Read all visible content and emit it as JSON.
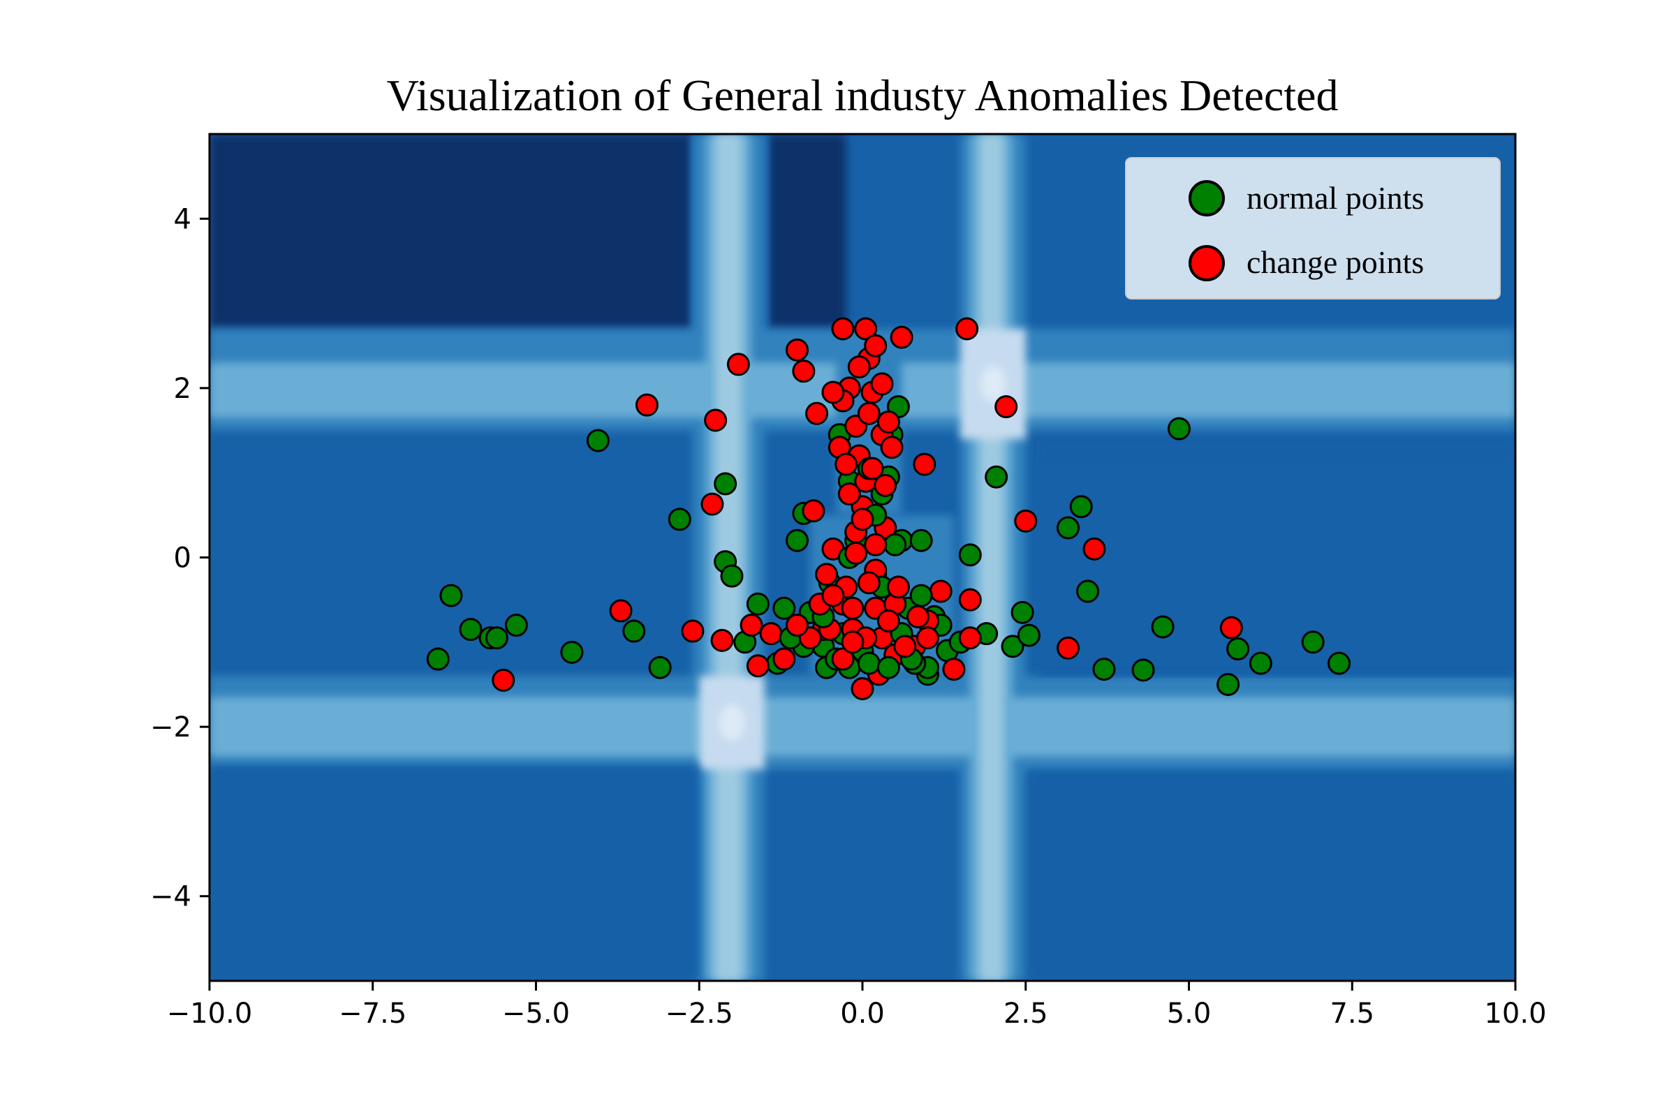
{
  "chart_data": {
    "type": "scatter",
    "title": "Visualization of General industy Anomalies Detected",
    "xlabel": "",
    "ylabel": "",
    "xlim": [
      -10,
      10
    ],
    "ylim": [
      -5,
      5
    ],
    "x_ticks": [
      -10,
      -7.5,
      -5,
      -2.5,
      0,
      2.5,
      5,
      7.5,
      10
    ],
    "x_tick_labels": [
      "−10.0",
      "−7.5",
      "−5.0",
      "−2.5",
      "0.0",
      "2.5",
      "5.0",
      "7.5",
      "10.0"
    ],
    "y_ticks": [
      -4,
      -2,
      0,
      2,
      4
    ],
    "y_tick_labels": [
      "−4",
      "−2",
      "0",
      "2",
      "4"
    ],
    "grid": false,
    "legend_position": "top-right",
    "background": "anomaly score contour field (blue shades), light vertical bands near x=-2 and x=2, light horizontal bands near y=2 and y=-2",
    "contour_colors": [
      "#08306b",
      "#08519c",
      "#1761a8",
      "#3182bd",
      "#6baed6",
      "#9ecae1",
      "#c6dbef",
      "#deebf7"
    ],
    "series": [
      {
        "name": "normal points",
        "color": "#008000",
        "points": [
          [
            -6.5,
            -1.2
          ],
          [
            -6.3,
            -0.45
          ],
          [
            -6.0,
            -0.85
          ],
          [
            -5.7,
            -0.95
          ],
          [
            -5.6,
            -0.95
          ],
          [
            -5.3,
            -0.8
          ],
          [
            -4.45,
            -1.12
          ],
          [
            -4.05,
            1.38
          ],
          [
            -3.5,
            -0.87
          ],
          [
            -3.1,
            -1.3
          ],
          [
            -2.8,
            0.45
          ],
          [
            -2.1,
            0.87
          ],
          [
            -2.1,
            -0.05
          ],
          [
            -2.0,
            -0.22
          ],
          [
            -1.6,
            -0.55
          ],
          [
            -1.8,
            -1.0
          ],
          [
            -1.2,
            -0.6
          ],
          [
            -1.0,
            0.2
          ],
          [
            -0.9,
            0.52
          ],
          [
            -0.8,
            -0.65
          ],
          [
            -0.6,
            -1.05
          ],
          [
            -0.5,
            -0.3
          ],
          [
            -0.35,
            1.45
          ],
          [
            -0.3,
            -0.9
          ],
          [
            -0.2,
            0.9
          ],
          [
            -0.1,
            0.2
          ],
          [
            0.1,
            0.5
          ],
          [
            0.2,
            -0.2
          ],
          [
            0.3,
            0.75
          ],
          [
            0.4,
            0.95
          ],
          [
            0.45,
            1.45
          ],
          [
            0.55,
            1.78
          ],
          [
            0.6,
            0.2
          ],
          [
            0.7,
            -0.6
          ],
          [
            0.9,
            0.2
          ],
          [
            1.0,
            -1.38
          ],
          [
            1.0,
            -1.3
          ],
          [
            1.1,
            -0.7
          ],
          [
            1.2,
            -0.8
          ],
          [
            1.3,
            -1.1
          ],
          [
            1.5,
            -1.0
          ],
          [
            1.65,
            0.03
          ],
          [
            1.9,
            -0.9
          ],
          [
            2.05,
            0.95
          ],
          [
            2.3,
            -1.05
          ],
          [
            2.45,
            -0.65
          ],
          [
            2.55,
            -0.92
          ],
          [
            3.15,
            0.35
          ],
          [
            3.35,
            0.6
          ],
          [
            3.45,
            -0.4
          ],
          [
            3.7,
            -1.32
          ],
          [
            4.3,
            -1.33
          ],
          [
            4.6,
            -0.82
          ],
          [
            4.85,
            1.52
          ],
          [
            5.6,
            -1.5
          ],
          [
            5.75,
            -1.08
          ],
          [
            6.1,
            -1.25
          ],
          [
            6.9,
            -1.0
          ],
          [
            7.3,
            -1.25
          ],
          [
            0.8,
            -1.25
          ],
          [
            -1.3,
            -1.25
          ],
          [
            0.0,
            -1.1
          ]
        ]
      },
      {
        "name": "change points",
        "color": "#ff0000",
        "points": [
          [
            -5.5,
            -1.45
          ],
          [
            -3.7,
            -0.63
          ],
          [
            -3.3,
            1.8
          ],
          [
            -2.6,
            -0.87
          ],
          [
            -2.25,
            1.62
          ],
          [
            -2.3,
            0.63
          ],
          [
            -1.9,
            2.28
          ],
          [
            -2.15,
            -0.98
          ],
          [
            -1.7,
            -0.8
          ],
          [
            -1.6,
            -1.28
          ],
          [
            -1.4,
            -0.9
          ],
          [
            -1.0,
            2.45
          ],
          [
            -0.9,
            2.2
          ],
          [
            -0.75,
            0.55
          ],
          [
            -0.7,
            1.7
          ],
          [
            -0.6,
            -0.85
          ],
          [
            -0.55,
            -0.2
          ],
          [
            -0.5,
            -0.85
          ],
          [
            -0.35,
            1.3
          ],
          [
            -0.3,
            -0.55
          ],
          [
            -0.3,
            2.7
          ],
          [
            -0.2,
            2.0
          ],
          [
            -0.15,
            -0.85
          ],
          [
            -0.1,
            0.3
          ],
          [
            0.0,
            -1.55
          ],
          [
            0.0,
            0.6
          ],
          [
            0.05,
            2.7
          ],
          [
            0.1,
            2.35
          ],
          [
            0.15,
            1.95
          ],
          [
            0.2,
            -0.15
          ],
          [
            0.2,
            -0.6
          ],
          [
            0.25,
            -1.38
          ],
          [
            0.3,
            1.45
          ],
          [
            0.35,
            0.35
          ],
          [
            0.4,
            1.6
          ],
          [
            0.5,
            -0.55
          ],
          [
            0.5,
            -1.15
          ],
          [
            0.6,
            2.6
          ],
          [
            0.8,
            -1.05
          ],
          [
            0.95,
            1.1
          ],
          [
            1.0,
            -0.75
          ],
          [
            1.2,
            -0.4
          ],
          [
            1.4,
            -1.32
          ],
          [
            1.65,
            -0.5
          ],
          [
            1.65,
            -0.95
          ],
          [
            1.6,
            2.7
          ],
          [
            2.2,
            1.78
          ],
          [
            2.5,
            0.43
          ],
          [
            3.15,
            -1.07
          ],
          [
            3.55,
            0.1
          ],
          [
            5.65,
            -0.83
          ],
          [
            -0.05,
            1.2
          ],
          [
            0.05,
            0.9
          ],
          [
            -0.25,
            -0.35
          ],
          [
            0.3,
            -0.95
          ],
          [
            -0.45,
            0.1
          ]
        ]
      },
      {
        "name": "",
        "color": "#008000",
        "points": [
          [
            -0.2,
            -1.3
          ],
          [
            0.1,
            -1.25
          ],
          [
            0.4,
            -1.3
          ],
          [
            0.6,
            -0.9
          ],
          [
            0.75,
            -1.2
          ],
          [
            -0.55,
            -1.3
          ],
          [
            -0.9,
            -1.05
          ],
          [
            -1.1,
            -0.95
          ],
          [
            0.9,
            -0.45
          ],
          [
            0.3,
            -0.35
          ],
          [
            -0.6,
            -0.7
          ],
          [
            -0.4,
            -1.2
          ],
          [
            0.2,
            0.5
          ],
          [
            0.5,
            0.15
          ],
          [
            -0.2,
            0.0
          ],
          [
            0.1,
            1.05
          ]
        ]
      },
      {
        "name": "",
        "color": "#ff0000",
        "points": [
          [
            -0.8,
            -0.95
          ],
          [
            -0.3,
            -1.2
          ],
          [
            0.05,
            -0.95
          ],
          [
            0.4,
            -0.75
          ],
          [
            -0.65,
            -0.55
          ],
          [
            -0.15,
            -0.6
          ],
          [
            0.65,
            -1.05
          ],
          [
            -1.0,
            -0.8
          ],
          [
            0.1,
            -0.3
          ],
          [
            -0.1,
            0.05
          ],
          [
            0.2,
            0.15
          ],
          [
            0.0,
            0.45
          ],
          [
            -0.2,
            0.75
          ],
          [
            0.15,
            1.05
          ],
          [
            -0.1,
            1.55
          ],
          [
            0.1,
            1.7
          ],
          [
            -0.3,
            1.85
          ],
          [
            0.3,
            2.05
          ],
          [
            -0.05,
            2.25
          ],
          [
            0.2,
            2.5
          ],
          [
            -0.45,
            1.95
          ],
          [
            0.45,
            1.3
          ],
          [
            -0.25,
            1.1
          ],
          [
            0.35,
            0.85
          ],
          [
            -0.15,
            -1.0
          ],
          [
            0.55,
            -0.35
          ],
          [
            -0.45,
            -0.45
          ],
          [
            -1.2,
            -1.2
          ],
          [
            1.0,
            -0.95
          ],
          [
            0.85,
            -0.7
          ]
        ]
      }
    ]
  }
}
